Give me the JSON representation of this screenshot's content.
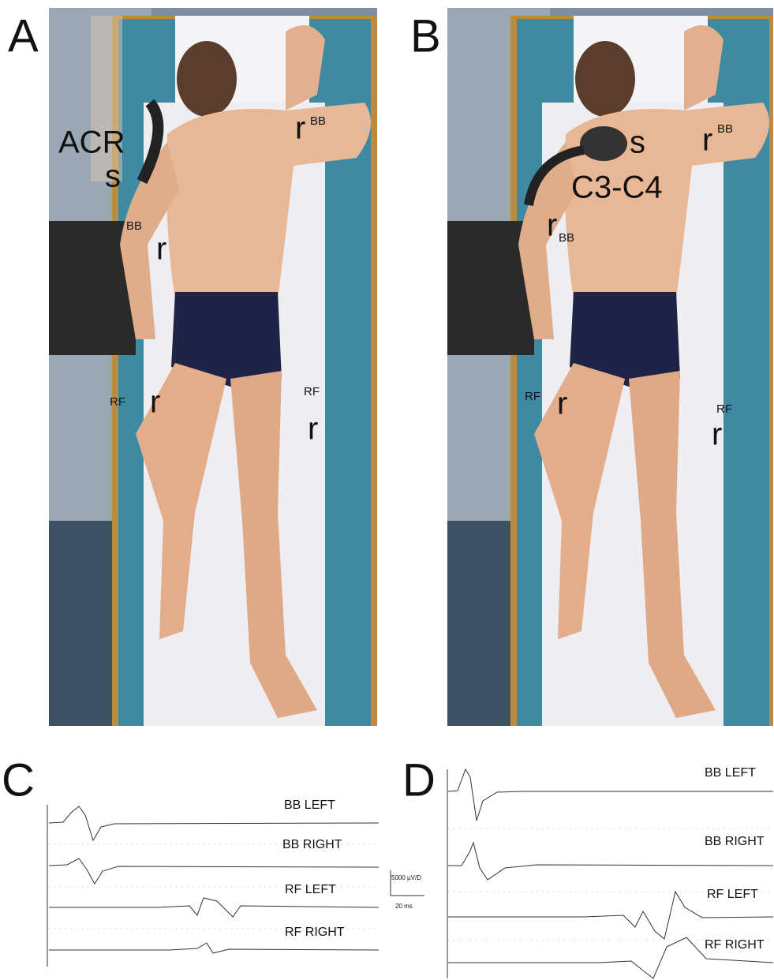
{
  "panel_a": {
    "label": "A",
    "annotations": [
      "ACR",
      "s",
      "r",
      "BB",
      "BB",
      "r",
      "RF",
      "r",
      "RF",
      "r"
    ]
  },
  "panel_b": {
    "label": "B",
    "annotations": [
      "s",
      "r",
      "BB",
      "C3-C4",
      "r",
      "BB",
      "RF",
      "r",
      "RF",
      "r"
    ]
  },
  "panel_c": {
    "label": "C",
    "channels": [
      "BB LEFT",
      "BB RIGHT",
      "RF LEFT",
      "RF RIGHT"
    ],
    "scale_amplitude": "5000 µV/D",
    "scale_time": "20 ms"
  },
  "panel_d": {
    "label": "D",
    "channels": [
      "BB LEFT",
      "BB RIGHT",
      "RF LEFT",
      "RF RIGHT"
    ]
  }
}
